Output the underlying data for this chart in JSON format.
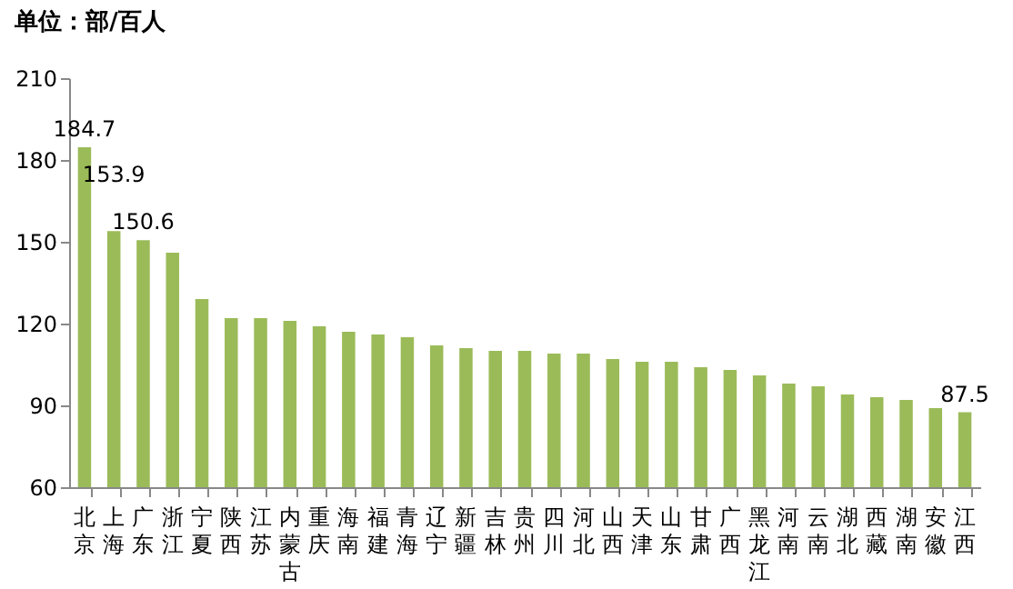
{
  "chart_data": {
    "type": "bar",
    "title": "单位：部/百人",
    "categories": [
      "北京",
      "上海",
      "广东",
      "浙江",
      "宁夏",
      "陕西",
      "江苏",
      "内蒙古",
      "重庆",
      "海南",
      "福建",
      "青海",
      "辽宁",
      "新疆",
      "吉林",
      "贵州",
      "四川",
      "河北",
      "山西",
      "天津",
      "山东",
      "甘肃",
      "广西",
      "黑龙江",
      "河南",
      "云南",
      "湖北",
      "西藏",
      "湖南",
      "安徽",
      "江西"
    ],
    "values": [
      184.7,
      153.9,
      150.6,
      146,
      129,
      122,
      122,
      121,
      119,
      117,
      116,
      115,
      112,
      111,
      110,
      110,
      109,
      109,
      107,
      106,
      106,
      104,
      103,
      101,
      98,
      97,
      94,
      93,
      92,
      89,
      87.5
    ],
    "value_labels": [
      "184.7",
      "153.9",
      "150.6",
      null,
      null,
      null,
      null,
      null,
      null,
      null,
      null,
      null,
      null,
      null,
      null,
      null,
      null,
      null,
      null,
      null,
      null,
      null,
      null,
      null,
      null,
      null,
      null,
      null,
      null,
      null,
      "87.5"
    ],
    "color": "#9bbb59",
    "ylim": [
      60,
      210
    ],
    "yticks": [
      60,
      90,
      120,
      150,
      180,
      210
    ],
    "grid": false
  }
}
